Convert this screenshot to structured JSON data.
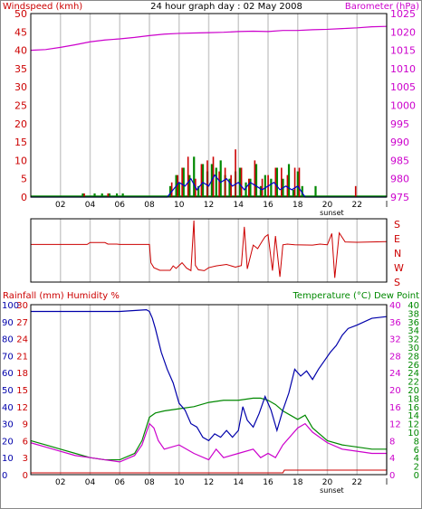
{
  "colors": {
    "wind": "#cc0000",
    "gust": "#cc0000",
    "avg_wind": "#0000cc",
    "wind_green": "#008800",
    "baro": "#cc00cc",
    "dir": "#cc0000",
    "rain": "#cc0000",
    "humidity": "#0000aa",
    "temperature": "#008800",
    "dewpoint": "#cc00cc",
    "grid": "#cccccc",
    "frame": "#000000"
  },
  "chart_data": [
    {
      "type": "bar",
      "title": "24 hour graph day : 02 May 2008",
      "ylabel_left": "Windspeed (kmh)",
      "ylabel_right": "Barometer (hPa)",
      "x_tick_labels": [
        "02",
        "04",
        "06",
        "08",
        "10",
        "12",
        "14",
        "16",
        "18",
        "20",
        "22",
        "l"
      ],
      "x_extra_label": "sunset",
      "y_left_ticks": [
        "0",
        "5",
        "10",
        "15",
        "20",
        "25",
        "30",
        "35",
        "40",
        "45",
        "50"
      ],
      "y_right_ticks": [
        "975",
        "980",
        "985",
        "990",
        "995",
        "1000",
        "1005",
        "1010",
        "1015",
        "1020",
        "1025"
      ],
      "ylim_left": [
        0,
        50
      ],
      "ylim_right": [
        975,
        1025
      ],
      "xlim": [
        0,
        24
      ],
      "series": [
        {
          "kind": "line",
          "axis": "right",
          "x": [
            0,
            1,
            2,
            3,
            4,
            5,
            6,
            7,
            8,
            9,
            10,
            11,
            12,
            13,
            14,
            15,
            16,
            17,
            18,
            19,
            20,
            21,
            22,
            23,
            24
          ],
          "values": [
            1015,
            1015.2,
            1015.8,
            1016.5,
            1017.3,
            1017.8,
            1018.1,
            1018.5,
            1019,
            1019.4,
            1019.6,
            1019.7,
            1019.8,
            1019.9,
            1020.1,
            1020.2,
            1020.1,
            1020.4,
            1020.4,
            1020.6,
            1020.7,
            1020.9,
            1021.1,
            1021.4,
            1021.5
          ]
        },
        {
          "kind": "gust",
          "axis": "left",
          "x": [
            3.6,
            5.2,
            9.5,
            9.9,
            10.2,
            10.6,
            11.1,
            11.5,
            11.9,
            12.3,
            12.7,
            13.1,
            13.5,
            13.8,
            14.2,
            14.7,
            15.1,
            15.6,
            16.0,
            16.5,
            16.9,
            17.3,
            17.8,
            18.1,
            21.9
          ],
          "values": [
            1,
            1,
            4,
            6,
            8,
            11,
            5,
            9,
            10,
            11,
            7,
            8,
            6,
            13,
            8,
            5,
            10,
            5,
            6,
            8,
            8,
            6,
            8,
            8,
            3
          ]
        },
        {
          "kind": "bar",
          "axis": "left",
          "x": [
            3.5,
            4.3,
            4.8,
            5.3,
            5.8,
            6.2,
            9.4,
            9.8,
            10.0,
            10.3,
            10.7,
            11.0,
            11.3,
            11.6,
            11.9,
            12.2,
            12.5,
            12.8,
            13.1,
            13.4,
            13.8,
            14.1,
            14.5,
            14.8,
            15.2,
            15.5,
            15.8,
            16.2,
            16.6,
            17.0,
            17.4,
            17.7,
            18.0,
            18.3,
            19.2
          ],
          "values": [
            1,
            1,
            1,
            1,
            1,
            1,
            3,
            6,
            4,
            8,
            6,
            11,
            3,
            9,
            7,
            9,
            8,
            10,
            6,
            5,
            7,
            8,
            4,
            5,
            9,
            3,
            6,
            5,
            8,
            5,
            9,
            2,
            7,
            3,
            3
          ]
        },
        {
          "kind": "line",
          "axis": "left",
          "x": [
            0,
            9.2,
            9.6,
            10,
            10.4,
            10.8,
            11.2,
            11.6,
            12,
            12.4,
            12.8,
            13.2,
            13.6,
            14,
            14.4,
            14.8,
            15.2,
            15.6,
            16,
            16.4,
            16.8,
            17.2,
            17.6,
            18,
            18.5,
            24
          ],
          "values": [
            0,
            0,
            2,
            4,
            3,
            5,
            2,
            4,
            3,
            6,
            4,
            5,
            3,
            4,
            2,
            4,
            3,
            2,
            3,
            4,
            2,
            3,
            2,
            3,
            0,
            0
          ]
        }
      ]
    },
    {
      "type": "line",
      "title": "",
      "y_right_ticks": [
        "S",
        "E",
        "N",
        "W",
        "S"
      ],
      "xlim": [
        0,
        24
      ],
      "ylim": [
        0,
        360
      ],
      "series": [
        {
          "x": [
            0,
            3.8,
            4.0,
            5.0,
            5.2,
            5.8,
            6.0,
            8.0,
            8.1,
            8.3,
            8.7,
            9.4,
            9.6,
            9.8,
            10.2,
            10.5,
            10.8,
            11.0,
            11.1,
            11.3,
            11.7,
            12.0,
            12.5,
            13.2,
            13.8,
            14.2,
            14.4,
            14.6,
            15.0,
            15.3,
            15.6,
            15.8,
            16.0,
            16.3,
            16.5,
            16.8,
            17.0,
            17.3,
            17.8,
            19.0,
            19.5,
            20.0,
            20.3,
            20.5,
            20.8,
            21.2,
            22.0,
            24
          ],
          "values": [
            214,
            214,
            225,
            225,
            216,
            216,
            214,
            214,
            110,
            82,
            67,
            67,
            92,
            78,
            110,
            80,
            65,
            350,
            95,
            70,
            65,
            82,
            92,
            100,
            85,
            94,
            314,
            75,
            210,
            190,
            232,
            258,
            270,
            65,
            262,
            30,
            212,
            216,
            212,
            210,
            216,
            212,
            276,
            24,
            280,
            228,
            226,
            230
          ]
        }
      ]
    },
    {
      "type": "line",
      "title": "",
      "ylabel_left": "Rainfall (mm)  Humidity %",
      "ylabel_right": "Temperature (°C) Dew Point",
      "x_tick_labels": [
        "02",
        "04",
        "06",
        "08",
        "10",
        "12",
        "14",
        "16",
        "18",
        "20",
        "22",
        "l"
      ],
      "x_extra_label": "sunset",
      "y_left_outer_ticks": [
        "0",
        "10",
        "20",
        "30",
        "40",
        "50",
        "60",
        "70",
        "80",
        "90",
        "100"
      ],
      "y_left_inner_ticks": [
        "0",
        "3",
        "6",
        "9",
        "12",
        "15",
        "18",
        "21",
        "24",
        "27",
        "30"
      ],
      "y_right_inner_ticks": [
        "0",
        "4",
        "8",
        "12",
        "16",
        "20",
        "24",
        "28",
        "32",
        "36",
        "40"
      ],
      "y_right_outer_ticks": [
        "0",
        "2",
        "4",
        "6",
        "8",
        "10",
        "12",
        "14",
        "16",
        "18",
        "20",
        "22",
        "24",
        "26",
        "28",
        "30",
        "32",
        "34",
        "36",
        "38",
        "40"
      ],
      "xlim": [
        0,
        24
      ],
      "ylim_humidity": [
        0,
        100
      ],
      "ylim_temp": [
        0,
        40
      ],
      "series": [
        {
          "name": "Humidity %",
          "axis": "humidity",
          "x": [
            0,
            2,
            4,
            6,
            7.8,
            8.0,
            8.2,
            8.4,
            8.8,
            9.2,
            9.6,
            10,
            10.4,
            10.8,
            11.2,
            11.6,
            12,
            12.4,
            12.8,
            13.2,
            13.6,
            14,
            14.3,
            14.6,
            15,
            15.4,
            15.8,
            16.2,
            16.6,
            17,
            17.4,
            17.8,
            18.2,
            18.6,
            19,
            19.4,
            19.8,
            20.2,
            20.6,
            21,
            21.4,
            22,
            23,
            24
          ],
          "values": [
            96,
            96,
            96,
            96,
            97,
            96,
            92,
            86,
            72,
            62,
            54,
            42,
            38,
            30,
            28,
            22,
            20,
            24,
            22,
            26,
            22,
            26,
            40,
            32,
            28,
            36,
            46,
            38,
            26,
            38,
            48,
            62,
            58,
            61,
            56,
            62,
            67,
            72,
            76,
            82,
            86,
            88,
            92,
            93
          ]
        },
        {
          "name": "Temperature",
          "axis": "temp",
          "x": [
            0,
            1,
            2,
            3,
            4,
            5,
            6,
            7,
            7.5,
            8,
            8.4,
            9,
            10,
            11,
            12,
            13,
            14,
            15,
            15.5,
            16,
            16.5,
            17,
            17.5,
            18,
            18.5,
            19,
            20,
            21,
            22,
            23,
            24
          ],
          "values": [
            8,
            7,
            6,
            5,
            4,
            3.5,
            3.5,
            5,
            8,
            13.5,
            14.5,
            15,
            15.5,
            16,
            17,
            17.5,
            17.5,
            18,
            18,
            17.5,
            16.5,
            15,
            14,
            13,
            14,
            11,
            8,
            7,
            6.5,
            6,
            6
          ]
        },
        {
          "name": "Dew Point",
          "axis": "temp",
          "x": [
            0,
            1,
            2,
            3,
            4,
            5,
            6,
            7,
            7.5,
            8,
            8.3,
            8.6,
            9,
            10,
            11,
            12,
            12.5,
            13,
            14,
            15,
            15.5,
            16,
            16.5,
            17,
            18,
            18.5,
            19,
            20,
            21,
            22,
            23,
            24
          ],
          "values": [
            7.5,
            6.5,
            5.5,
            4.5,
            4,
            3.5,
            3,
            4.5,
            7,
            12,
            11,
            8,
            6,
            7,
            5,
            3.5,
            6,
            4,
            5,
            6,
            4,
            5,
            4,
            7,
            11,
            12,
            10,
            7.5,
            6,
            5.5,
            5,
            5
          ]
        },
        {
          "name": "Rainfall",
          "axis": "rain",
          "x": [
            0,
            17,
            17.1,
            24
          ],
          "values": [
            0,
            0,
            1,
            1
          ]
        }
      ]
    }
  ]
}
